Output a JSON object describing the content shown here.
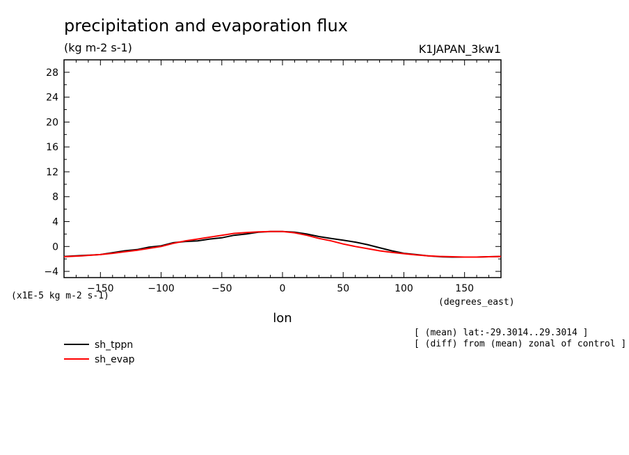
{
  "chart_data": {
    "type": "line",
    "title": "precipitation and evaporation flux",
    "units": "(kg m-2 s-1)",
    "dataset": "K1JAPAN_3kw1",
    "xlabel": "lon",
    "xunits": "(degrees_east)",
    "yscale_label": "(x1E-5 kg m-2 s-1)",
    "xlim": [
      -180,
      180
    ],
    "ylim": [
      -5,
      30
    ],
    "xticks": [
      -150,
      -100,
      -50,
      0,
      50,
      100,
      150
    ],
    "yticks": [
      -4,
      0,
      4,
      8,
      12,
      16,
      20,
      24,
      28
    ],
    "annotations": [
      "[ (mean) lat:-29.3014..29.3014 ]",
      "[ (diff) from (mean) zonal of control ]"
    ],
    "grid": false,
    "legend_position": "bottom-left",
    "series": [
      {
        "name": "sh_tppn",
        "color": "#000000",
        "x": [
          -180,
          -165,
          -150,
          -140,
          -130,
          -120,
          -110,
          -100,
          -90,
          -80,
          -70,
          -60,
          -50,
          -40,
          -30,
          -20,
          -10,
          0,
          10,
          20,
          30,
          40,
          50,
          60,
          70,
          80,
          90,
          100,
          110,
          120,
          130,
          140,
          150,
          160,
          170,
          180
        ],
        "values": [
          -1.6,
          -1.45,
          -1.3,
          -1.0,
          -0.7,
          -0.5,
          -0.1,
          0.1,
          0.6,
          0.8,
          0.9,
          1.2,
          1.4,
          1.8,
          2.0,
          2.3,
          2.4,
          2.4,
          2.3,
          2.0,
          1.6,
          1.3,
          1.0,
          0.7,
          0.3,
          -0.2,
          -0.7,
          -1.1,
          -1.3,
          -1.5,
          -1.65,
          -1.7,
          -1.7,
          -1.7,
          -1.65,
          -1.6
        ]
      },
      {
        "name": "sh_evap",
        "color": "#ff0000",
        "x": [
          -180,
          -165,
          -150,
          -140,
          -130,
          -120,
          -110,
          -100,
          -90,
          -80,
          -70,
          -60,
          -50,
          -40,
          -30,
          -20,
          -10,
          0,
          10,
          20,
          30,
          40,
          50,
          60,
          70,
          80,
          90,
          100,
          110,
          120,
          130,
          140,
          150,
          160,
          170,
          180
        ],
        "values": [
          -1.65,
          -1.5,
          -1.3,
          -1.1,
          -0.85,
          -0.6,
          -0.3,
          0.0,
          0.5,
          0.9,
          1.2,
          1.5,
          1.8,
          2.1,
          2.25,
          2.35,
          2.4,
          2.4,
          2.2,
          1.8,
          1.3,
          0.9,
          0.4,
          0.0,
          -0.35,
          -0.7,
          -0.95,
          -1.15,
          -1.35,
          -1.5,
          -1.6,
          -1.65,
          -1.7,
          -1.7,
          -1.65,
          -1.6
        ]
      }
    ]
  }
}
